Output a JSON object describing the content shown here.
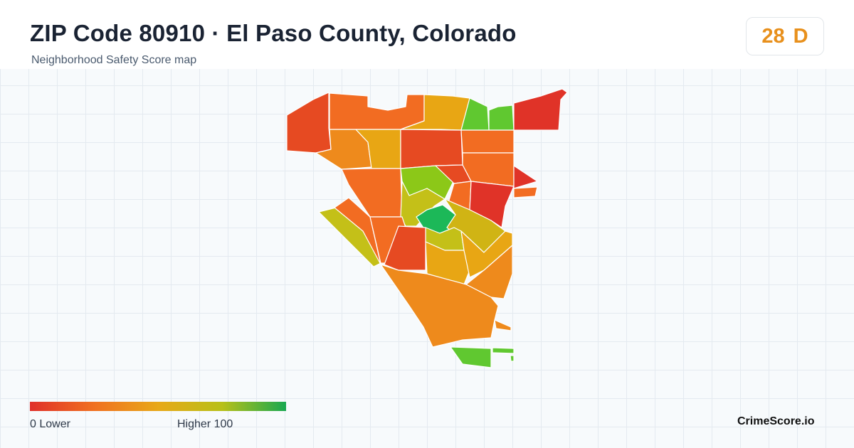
{
  "header": {
    "title": "ZIP Code 80910 · El Paso County, Colorado",
    "subtitle": "Neighborhood Safety Score map"
  },
  "score": {
    "value": "28",
    "grade": "D",
    "color": "#e8901c"
  },
  "legend": {
    "min_label": "0  Lower",
    "max_label": "Higher  100",
    "range": [
      0,
      100
    ],
    "gradient_colors": [
      "#e0302a",
      "#f07020",
      "#e8a818",
      "#b8c018",
      "#18a850"
    ]
  },
  "brand": {
    "label": "CrimeScore.io"
  },
  "map": {
    "grid": true,
    "background": "#f7fafc",
    "region_colors": {
      "red": "#e03328",
      "red_orange": "#e64a22",
      "orange": "#f26c22",
      "dark_orange": "#ee8a1c",
      "amber": "#e8a614",
      "yellow_olive": "#d0b414",
      "olive": "#c4c018",
      "yellow_green": "#8cc818",
      "green": "#60c830",
      "bright_green": "#1cb858"
    }
  }
}
